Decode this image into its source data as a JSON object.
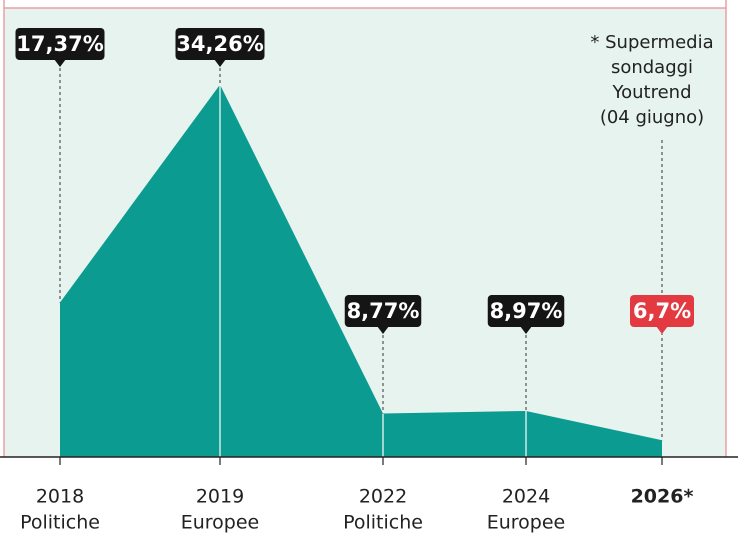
{
  "chart_data": {
    "type": "area",
    "categories": [
      "2018",
      "2019",
      "2022",
      "2024",
      "2026*"
    ],
    "category_subtitles": [
      "Politiche",
      "Europee",
      "Politiche",
      "Europee",
      null
    ],
    "values": [
      17.37,
      34.26,
      8.77,
      8.97,
      6.7
    ],
    "value_labels": [
      "17,37%",
      "34,26%",
      "8,77%",
      "8,97%",
      "6,7%"
    ],
    "value_label_colors": [
      "#151515",
      "#151515",
      "#151515",
      "#151515",
      "#e23a40"
    ],
    "color": "#0b9b90",
    "ylim": [
      5.4,
      40.2
    ],
    "annotation": [
      "* Supermedia",
      "sondaggi",
      "Youtrend",
      "(04 giugno)"
    ]
  }
}
